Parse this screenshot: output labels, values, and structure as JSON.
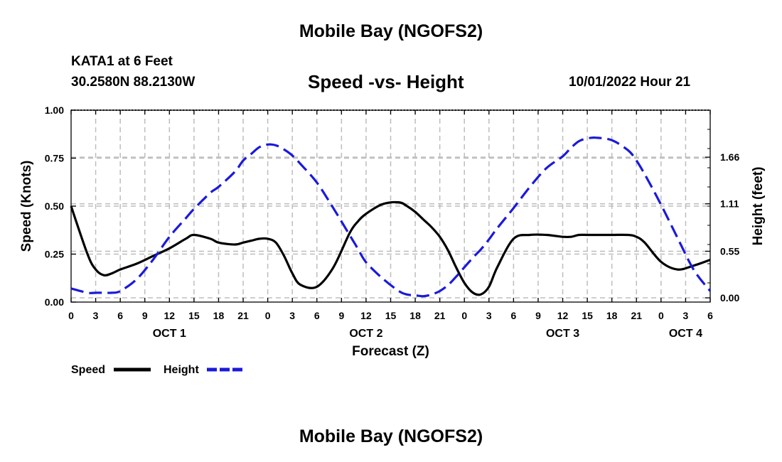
{
  "header": {
    "title": "Mobile Bay (NGOFS2)",
    "station": "KATA1 at 6 Feet",
    "coords": "30.2580N  88.2130W",
    "chart_title": "Speed -vs- Height",
    "datetime": "10/01/2022 Hour 21"
  },
  "footer": {
    "title": "Mobile Bay (NGOFS2)"
  },
  "colors": {
    "speed": "#000000",
    "height": "#1a1adb",
    "grid": "#bdbdbd"
  },
  "chart_data": {
    "type": "line",
    "title": "Speed -vs- Height",
    "xlabel": "Forecast (Z)",
    "ylabel": "Speed (Knots)",
    "y2label": "Height (feet)",
    "xlim": [
      0,
      78
    ],
    "ylim": [
      0,
      1
    ],
    "y2lim": [
      -0.05,
      2.215
    ],
    "x_ticks": [
      0,
      3,
      6,
      9,
      12,
      15,
      18,
      21,
      24,
      27,
      30,
      33,
      36,
      39,
      42,
      45,
      48,
      51,
      54,
      57,
      60,
      63,
      66,
      69,
      72,
      75,
      78
    ],
    "x_tick_labels": [
      "0",
      "3",
      "6",
      "9",
      "12",
      "15",
      "18",
      "21",
      "0",
      "3",
      "6",
      "9",
      "12",
      "15",
      "18",
      "21",
      "0",
      "3",
      "6",
      "9",
      "12",
      "15",
      "18",
      "21",
      "0",
      "3",
      "6"
    ],
    "day_labels": [
      {
        "label": "OCT 1",
        "x": 12
      },
      {
        "label": "OCT 2",
        "x": 36
      },
      {
        "label": "OCT 3",
        "x": 60
      },
      {
        "label": "OCT 4",
        "x": 75
      }
    ],
    "y_ticks": [
      0,
      0.25,
      0.5,
      0.75,
      1.0
    ],
    "y_tick_labels": [
      "0.00",
      "0.25",
      "0.50",
      "0.75",
      "1.00"
    ],
    "y2_ticks": [
      0.0,
      0.55,
      1.11,
      1.66
    ],
    "y2_tick_labels": [
      "0.00",
      "0.55",
      "1.11",
      "1.66"
    ],
    "legend": {
      "speed_label": "Speed",
      "height_label": "Height"
    },
    "series": [
      {
        "name": "Speed",
        "axis": "left",
        "style": "solid",
        "x": [
          0,
          2,
          3,
          4,
          5,
          6,
          8,
          10,
          12,
          14,
          15,
          17,
          18,
          20,
          21,
          22,
          23,
          24,
          25,
          26,
          27,
          28,
          30,
          32,
          34,
          35,
          36,
          38,
          40,
          41,
          42,
          43,
          44,
          45,
          46,
          47,
          48,
          49,
          50,
          51,
          52,
          54,
          56,
          58,
          60,
          61,
          62,
          63,
          64,
          66,
          68,
          69,
          70,
          72,
          74,
          76,
          78
        ],
        "y": [
          0.5,
          0.25,
          0.17,
          0.14,
          0.15,
          0.17,
          0.2,
          0.24,
          0.28,
          0.33,
          0.35,
          0.33,
          0.31,
          0.3,
          0.31,
          0.32,
          0.33,
          0.33,
          0.31,
          0.24,
          0.15,
          0.09,
          0.08,
          0.18,
          0.36,
          0.42,
          0.46,
          0.51,
          0.52,
          0.5,
          0.47,
          0.43,
          0.39,
          0.34,
          0.27,
          0.18,
          0.1,
          0.05,
          0.04,
          0.08,
          0.18,
          0.33,
          0.35,
          0.35,
          0.34,
          0.34,
          0.35,
          0.35,
          0.35,
          0.35,
          0.35,
          0.34,
          0.31,
          0.21,
          0.17,
          0.19,
          0.22
        ]
      },
      {
        "name": "Height",
        "axis": "right",
        "style": "dashed",
        "x": [
          0,
          2,
          3,
          4,
          5,
          6,
          8,
          10,
          12,
          14,
          15,
          17,
          18,
          20,
          21,
          22,
          23,
          24,
          25,
          26,
          27,
          28,
          30,
          32,
          34,
          35,
          36,
          38,
          40,
          41,
          42,
          43,
          44,
          45,
          46,
          47,
          48,
          49,
          50,
          51,
          52,
          54,
          56,
          58,
          60,
          61,
          62,
          63,
          64,
          66,
          68,
          69,
          70,
          72,
          74,
          76,
          78
        ],
        "y": [
          0.11,
          0.06,
          0.06,
          0.06,
          0.06,
          0.08,
          0.22,
          0.45,
          0.72,
          0.94,
          1.05,
          1.24,
          1.31,
          1.49,
          1.62,
          1.7,
          1.78,
          1.81,
          1.8,
          1.75,
          1.68,
          1.58,
          1.36,
          1.06,
          0.74,
          0.58,
          0.42,
          0.23,
          0.08,
          0.04,
          0.03,
          0.02,
          0.04,
          0.08,
          0.15,
          0.25,
          0.36,
          0.47,
          0.57,
          0.69,
          0.82,
          1.06,
          1.31,
          1.53,
          1.67,
          1.77,
          1.85,
          1.88,
          1.89,
          1.86,
          1.74,
          1.62,
          1.46,
          1.1,
          0.71,
          0.33,
          0.08
        ]
      }
    ]
  }
}
